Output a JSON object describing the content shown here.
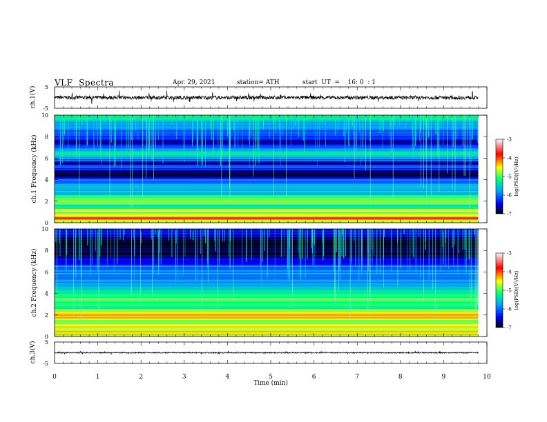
{
  "header": {
    "title": "VLF  Spectra",
    "date": "Apr. 29, 2021",
    "station": "station= ATH",
    "start": "start  UT  =    16: 0  : 1"
  },
  "chart_data": [
    {
      "type": "line",
      "panel": "ch1-waveform",
      "ylabel": "ch.1(V)",
      "yticks": [
        "5",
        "-5"
      ],
      "ylim": [
        -5,
        5
      ],
      "xlim": [
        0,
        10
      ],
      "x_end": 9.8,
      "baseline": 0,
      "noise_amplitude": 0.9
    },
    {
      "type": "heatmap",
      "panel": "ch1-spectrogram",
      "ylabel": "ch.1  Frequency  (kHz)",
      "yticks": [
        "0",
        "2",
        "4",
        "6",
        "8",
        "10"
      ],
      "ylim": [
        0,
        10
      ],
      "xlim": [
        0,
        10
      ],
      "x_end": 9.8,
      "colorbar": {
        "label": "log(PSD)(V²/Hz)",
        "ticks": [
          "-3",
          "-4",
          "-5",
          "-6",
          "-7"
        ],
        "range": [
          -7,
          -3
        ],
        "colors": [
          "#000000",
          "#0000ff",
          "#00a0ff",
          "#00ff80",
          "#ffff00",
          "#ff0000",
          "#ffffff"
        ]
      },
      "band_psd": [
        [
          0.0,
          -5.0
        ],
        [
          0.25,
          -4.2
        ],
        [
          0.45,
          -3.9
        ],
        [
          0.8,
          -5.0
        ],
        [
          1.2,
          -4.7
        ],
        [
          1.5,
          -5.5
        ],
        [
          1.8,
          -4.8
        ],
        [
          2.2,
          -5.0
        ],
        [
          2.8,
          -5.6
        ],
        [
          3.3,
          -5.5
        ],
        [
          3.8,
          -5.9
        ],
        [
          4.2,
          -6.6
        ],
        [
          4.7,
          -6.8
        ],
        [
          5.2,
          -6.1
        ],
        [
          5.6,
          -6.7
        ],
        [
          6.0,
          -5.8
        ],
        [
          6.5,
          -5.4
        ],
        [
          7.0,
          -6.2
        ],
        [
          7.5,
          -6.5
        ],
        [
          8.0,
          -6.2
        ],
        [
          9.0,
          -5.8
        ],
        [
          10.0,
          -5.2
        ]
      ]
    },
    {
      "type": "heatmap",
      "panel": "ch2-spectrogram",
      "ylabel": "ch.2  Frequency  (kHz)",
      "yticks": [
        "0",
        "2",
        "4",
        "6",
        "8",
        "10"
      ],
      "ylim": [
        0,
        10
      ],
      "xlim": [
        0,
        10
      ],
      "x_end": 9.8,
      "colorbar": {
        "label": "log(PSD)(V²/Hz)",
        "ticks": [
          "-3",
          "-4",
          "-5",
          "-6",
          "-7"
        ],
        "range": [
          -7,
          -3
        ],
        "colors": [
          "#000000",
          "#0000ff",
          "#00a0ff",
          "#00ff80",
          "#ffff00",
          "#ff0000",
          "#ffffff"
        ]
      },
      "band_psd": [
        [
          0.0,
          -4.8
        ],
        [
          0.3,
          -4.4
        ],
        [
          0.6,
          -4.6
        ],
        [
          1.0,
          -4.5
        ],
        [
          1.4,
          -4.8
        ],
        [
          1.9,
          -4.3
        ],
        [
          2.2,
          -4.5
        ],
        [
          2.6,
          -5.1
        ],
        [
          3.0,
          -5.0
        ],
        [
          3.5,
          -4.8
        ],
        [
          4.0,
          -5.3
        ],
        [
          4.5,
          -5.6
        ],
        [
          5.0,
          -5.8
        ],
        [
          5.5,
          -6.0
        ],
        [
          6.0,
          -5.8
        ],
        [
          6.5,
          -6.2
        ],
        [
          7.0,
          -6.4
        ],
        [
          7.5,
          -6.7
        ],
        [
          8.0,
          -6.9
        ],
        [
          9.0,
          -6.8
        ],
        [
          10.0,
          -6.3
        ]
      ]
    },
    {
      "type": "line",
      "panel": "ch3-waveform",
      "ylabel": "ch.3(V)",
      "yticks": [
        "5",
        "-5"
      ],
      "ylim": [
        -5,
        5
      ],
      "xlim": [
        0,
        10
      ],
      "x_end": 9.8,
      "baseline": 0,
      "noise_amplitude": 0.25
    }
  ],
  "xaxis": {
    "label": "Time  (min)",
    "ticks": [
      "0",
      "1",
      "2",
      "3",
      "4",
      "5",
      "6",
      "7",
      "8",
      "9",
      "10"
    ]
  }
}
